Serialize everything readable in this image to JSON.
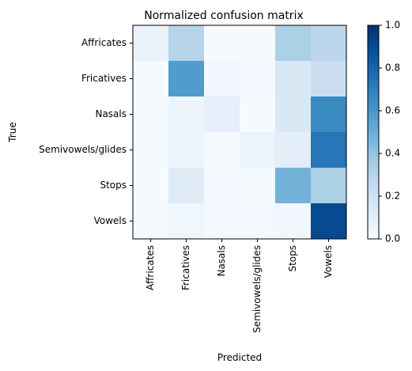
{
  "chart_data": {
    "type": "heatmap",
    "title": "Normalized confusion matrix",
    "xlabel": "Predicted",
    "ylabel": "True",
    "rows": [
      "Affricates",
      "Fricatives",
      "Nasals",
      "Semivowels/glides",
      "Stops",
      "Vowels"
    ],
    "columns": [
      "Affricates",
      "Fricatives",
      "Nasals",
      "Semivowels/glides",
      "Stops",
      "Vowels"
    ],
    "values": [
      [
        0.07,
        0.3,
        0.01,
        0.01,
        0.33,
        0.28
      ],
      [
        0.01,
        0.58,
        0.03,
        0.02,
        0.15,
        0.23
      ],
      [
        0.01,
        0.05,
        0.09,
        0.01,
        0.15,
        0.65
      ],
      [
        0.01,
        0.05,
        0.01,
        0.06,
        0.1,
        0.73
      ],
      [
        0.01,
        0.12,
        0.02,
        0.01,
        0.48,
        0.33
      ],
      [
        0.01,
        0.04,
        0.02,
        0.02,
        0.03,
        0.9
      ]
    ],
    "colorbar": {
      "min": 0.0,
      "max": 1.0,
      "ticks": [
        "0.0",
        "0.2",
        "0.4",
        "0.6",
        "0.8",
        "1.0"
      ],
      "colormap": "Blues",
      "low_color": "#f7fbff",
      "high_color": "#08306b"
    },
    "grid": false
  }
}
